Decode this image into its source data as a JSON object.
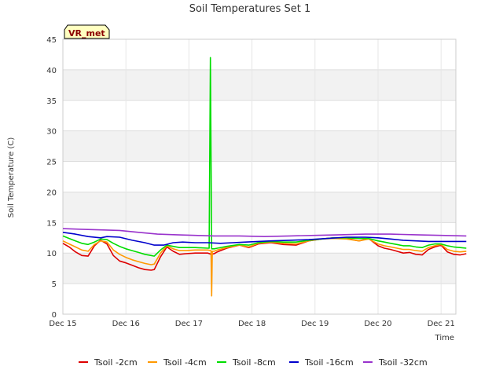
{
  "chart_data": {
    "type": "line",
    "title": "Soil Temperatures Set 1",
    "xlabel": "Time",
    "ylabel": "Soil Temperature (C)",
    "badge": "VR_met",
    "xlim": [
      0,
      6.05
    ],
    "ylim": [
      0,
      45
    ],
    "x_ticks": [
      {
        "value": 0,
        "label": "Dec 15"
      },
      {
        "value": 1,
        "label": "Dec 16"
      },
      {
        "value": 2,
        "label": "Dec 17"
      },
      {
        "value": 3,
        "label": "Dec 18"
      },
      {
        "value": 4,
        "label": "Dec 19"
      },
      {
        "value": 5,
        "label": "Dec 20"
      },
      {
        "value": 6,
        "label": "Dec 21"
      }
    ],
    "y_ticks": [
      0,
      5,
      10,
      15,
      20,
      25,
      30,
      35,
      40,
      45
    ],
    "series": [
      {
        "name": "Tsoil -2cm",
        "color": "#dd0000",
        "points": [
          [
            0,
            11.6
          ],
          [
            0.1,
            11.0
          ],
          [
            0.2,
            10.2
          ],
          [
            0.3,
            9.6
          ],
          [
            0.4,
            9.5
          ],
          [
            0.5,
            11.2
          ],
          [
            0.6,
            12.1
          ],
          [
            0.7,
            11.5
          ],
          [
            0.8,
            9.6
          ],
          [
            0.9,
            8.7
          ],
          [
            1.0,
            8.4
          ],
          [
            1.1,
            8.0
          ],
          [
            1.2,
            7.6
          ],
          [
            1.3,
            7.3
          ],
          [
            1.4,
            7.2
          ],
          [
            1.45,
            7.3
          ],
          [
            1.55,
            9.4
          ],
          [
            1.65,
            11.0
          ],
          [
            1.75,
            10.3
          ],
          [
            1.85,
            9.8
          ],
          [
            1.95,
            9.9
          ],
          [
            2.1,
            10.0
          ],
          [
            2.3,
            10.0
          ],
          [
            2.35,
            9.8
          ],
          [
            2.4,
            9.9
          ],
          [
            2.45,
            10.2
          ],
          [
            2.6,
            10.8
          ],
          [
            2.8,
            11.3
          ],
          [
            2.95,
            10.9
          ],
          [
            3.1,
            11.5
          ],
          [
            3.3,
            11.7
          ],
          [
            3.5,
            11.4
          ],
          [
            3.7,
            11.3
          ],
          [
            3.9,
            12.0
          ],
          [
            4.1,
            12.3
          ],
          [
            4.3,
            12.5
          ],
          [
            4.5,
            12.4
          ],
          [
            4.7,
            12.0
          ],
          [
            4.85,
            12.4
          ],
          [
            5.0,
            11.2
          ],
          [
            5.1,
            10.8
          ],
          [
            5.2,
            10.6
          ],
          [
            5.3,
            10.3
          ],
          [
            5.4,
            10.0
          ],
          [
            5.5,
            10.1
          ],
          [
            5.6,
            9.8
          ],
          [
            5.7,
            9.7
          ],
          [
            5.8,
            10.6
          ],
          [
            5.9,
            11.0
          ],
          [
            6.0,
            11.3
          ],
          [
            6.1,
            10.2
          ],
          [
            6.2,
            9.8
          ],
          [
            6.3,
            9.7
          ],
          [
            6.4,
            9.9
          ]
        ]
      },
      {
        "name": "Tsoil -4cm",
        "color": "#ff9900",
        "points": [
          [
            0,
            12.0
          ],
          [
            0.1,
            11.5
          ],
          [
            0.2,
            11.0
          ],
          [
            0.3,
            10.5
          ],
          [
            0.4,
            10.3
          ],
          [
            0.5,
            11.4
          ],
          [
            0.6,
            12.0
          ],
          [
            0.7,
            11.8
          ],
          [
            0.8,
            10.5
          ],
          [
            0.9,
            9.8
          ],
          [
            1.0,
            9.3
          ],
          [
            1.1,
            8.9
          ],
          [
            1.2,
            8.6
          ],
          [
            1.3,
            8.3
          ],
          [
            1.4,
            8.1
          ],
          [
            1.45,
            8.2
          ],
          [
            1.55,
            10.0
          ],
          [
            1.65,
            11.2
          ],
          [
            1.75,
            10.7
          ],
          [
            1.85,
            10.4
          ],
          [
            1.95,
            10.4
          ],
          [
            2.1,
            10.5
          ],
          [
            2.3,
            10.5
          ],
          [
            2.35,
            10.4
          ],
          [
            2.36,
            3.0
          ],
          [
            2.37,
            10.3
          ],
          [
            2.4,
            10.3
          ],
          [
            2.45,
            10.5
          ],
          [
            2.6,
            10.9
          ],
          [
            2.8,
            11.3
          ],
          [
            2.95,
            11.0
          ],
          [
            3.1,
            11.6
          ],
          [
            3.3,
            11.8
          ],
          [
            3.5,
            11.6
          ],
          [
            3.7,
            11.5
          ],
          [
            3.9,
            12.0
          ],
          [
            4.1,
            12.3
          ],
          [
            4.3,
            12.4
          ],
          [
            4.5,
            12.3
          ],
          [
            4.7,
            12.0
          ],
          [
            4.85,
            12.3
          ],
          [
            5.0,
            11.5
          ],
          [
            5.1,
            11.2
          ],
          [
            5.2,
            11.0
          ],
          [
            5.3,
            10.8
          ],
          [
            5.4,
            10.6
          ],
          [
            5.5,
            10.6
          ],
          [
            5.6,
            10.4
          ],
          [
            5.7,
            10.3
          ],
          [
            5.8,
            10.9
          ],
          [
            5.9,
            11.2
          ],
          [
            6.0,
            11.4
          ],
          [
            6.1,
            10.6
          ],
          [
            6.2,
            10.3
          ],
          [
            6.3,
            10.2
          ],
          [
            6.4,
            10.3
          ]
        ]
      },
      {
        "name": "Tsoil -8cm",
        "color": "#00dd00",
        "points": [
          [
            0,
            12.8
          ],
          [
            0.1,
            12.4
          ],
          [
            0.2,
            12.0
          ],
          [
            0.3,
            11.6
          ],
          [
            0.4,
            11.4
          ],
          [
            0.5,
            11.8
          ],
          [
            0.6,
            12.3
          ],
          [
            0.7,
            12.2
          ],
          [
            0.8,
            11.6
          ],
          [
            0.9,
            11.1
          ],
          [
            1.0,
            10.7
          ],
          [
            1.1,
            10.4
          ],
          [
            1.2,
            10.1
          ],
          [
            1.3,
            9.8
          ],
          [
            1.4,
            9.6
          ],
          [
            1.45,
            9.5
          ],
          [
            1.55,
            10.5
          ],
          [
            1.65,
            11.3
          ],
          [
            1.75,
            11.1
          ],
          [
            1.85,
            10.9
          ],
          [
            1.95,
            10.9
          ],
          [
            2.1,
            10.9
          ],
          [
            2.3,
            10.8
          ],
          [
            2.32,
            10.8
          ],
          [
            2.34,
            42.0
          ],
          [
            2.36,
            10.7
          ],
          [
            2.4,
            10.7
          ],
          [
            2.45,
            10.8
          ],
          [
            2.6,
            11.1
          ],
          [
            2.8,
            11.4
          ],
          [
            2.95,
            11.3
          ],
          [
            3.1,
            11.7
          ],
          [
            3.3,
            11.9
          ],
          [
            3.5,
            11.8
          ],
          [
            3.7,
            11.8
          ],
          [
            3.9,
            12.1
          ],
          [
            4.1,
            12.3
          ],
          [
            4.3,
            12.5
          ],
          [
            4.5,
            12.5
          ],
          [
            4.7,
            12.4
          ],
          [
            4.85,
            12.4
          ],
          [
            5.0,
            12.0
          ],
          [
            5.1,
            11.8
          ],
          [
            5.2,
            11.6
          ],
          [
            5.3,
            11.4
          ],
          [
            5.4,
            11.2
          ],
          [
            5.5,
            11.2
          ],
          [
            5.6,
            11.0
          ],
          [
            5.7,
            10.9
          ],
          [
            5.8,
            11.3
          ],
          [
            5.9,
            11.5
          ],
          [
            6.0,
            11.5
          ],
          [
            6.1,
            11.2
          ],
          [
            6.2,
            11.0
          ],
          [
            6.3,
            10.9
          ],
          [
            6.4,
            10.8
          ]
        ]
      },
      {
        "name": "Tsoil -16cm",
        "color": "#0000cc",
        "points": [
          [
            0,
            13.4
          ],
          [
            0.2,
            13.1
          ],
          [
            0.4,
            12.7
          ],
          [
            0.6,
            12.5
          ],
          [
            0.7,
            12.7
          ],
          [
            0.9,
            12.6
          ],
          [
            1.1,
            12.1
          ],
          [
            1.3,
            11.7
          ],
          [
            1.45,
            11.3
          ],
          [
            1.6,
            11.3
          ],
          [
            1.75,
            11.7
          ],
          [
            1.9,
            11.8
          ],
          [
            2.1,
            11.7
          ],
          [
            2.3,
            11.7
          ],
          [
            2.5,
            11.6
          ],
          [
            2.7,
            11.7
          ],
          [
            2.9,
            11.8
          ],
          [
            3.1,
            11.9
          ],
          [
            3.3,
            12.0
          ],
          [
            3.6,
            12.1
          ],
          [
            3.9,
            12.2
          ],
          [
            4.2,
            12.4
          ],
          [
            4.5,
            12.6
          ],
          [
            4.8,
            12.6
          ],
          [
            5.0,
            12.5
          ],
          [
            5.2,
            12.3
          ],
          [
            5.4,
            12.1
          ],
          [
            5.6,
            12.0
          ],
          [
            5.8,
            11.9
          ],
          [
            6.0,
            11.9
          ],
          [
            6.2,
            11.9
          ],
          [
            6.4,
            11.9
          ]
        ]
      },
      {
        "name": "Tsoil -32cm",
        "color": "#9933cc",
        "points": [
          [
            0,
            14.0
          ],
          [
            0.3,
            13.9
          ],
          [
            0.6,
            13.8
          ],
          [
            0.9,
            13.7
          ],
          [
            1.2,
            13.4
          ],
          [
            1.5,
            13.1
          ],
          [
            1.8,
            13.0
          ],
          [
            2.1,
            12.9
          ],
          [
            2.4,
            12.8
          ],
          [
            2.8,
            12.8
          ],
          [
            3.2,
            12.7
          ],
          [
            3.6,
            12.8
          ],
          [
            4.0,
            12.9
          ],
          [
            4.4,
            13.0
          ],
          [
            4.8,
            13.1
          ],
          [
            5.2,
            13.1
          ],
          [
            5.6,
            13.0
          ],
          [
            6.0,
            12.9
          ],
          [
            6.4,
            12.8
          ]
        ]
      }
    ],
    "legend": "bottom"
  }
}
